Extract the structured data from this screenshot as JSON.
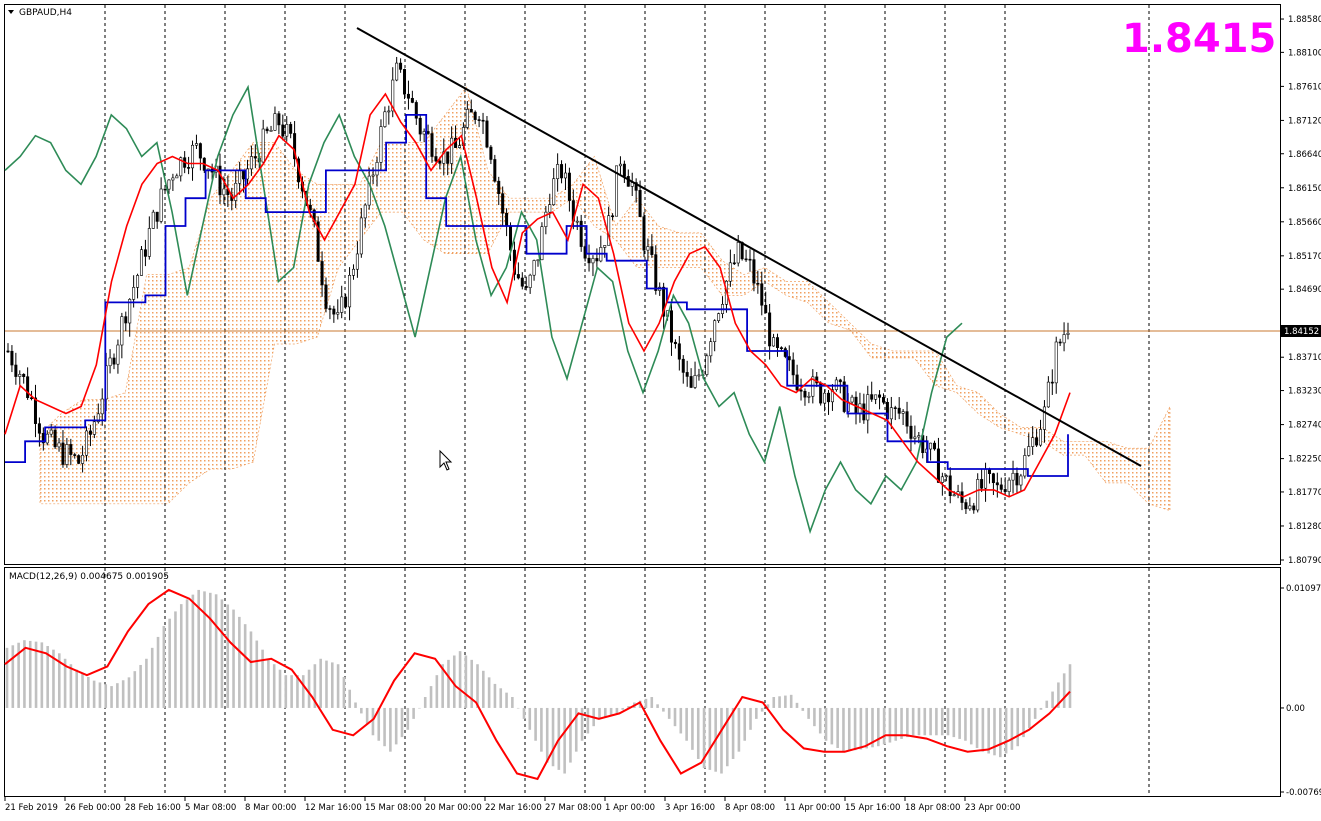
{
  "symbol_label": "GBPAUD,H4",
  "price_display": "1.8415",
  "current_price_tag": "1.84152",
  "indicator_label": "MACD(12,26,9) 0.004675 0.001905",
  "colors": {
    "ichimoku_cloud": "#f0a060",
    "kumo_grey": "#b8b8c8",
    "tenkan": "#ff0000",
    "kijun": "#0000cc",
    "chikou": "#2e8b57",
    "macd_hist": "#c0c0c0",
    "macd_signal": "#ff0000",
    "price_big": "#ff00ff",
    "current_line": "#c87830"
  },
  "chart_data": [
    {
      "type": "line",
      "title": "GBPAUD,H4",
      "y_ticks": [
        "1.88580",
        "1.88100",
        "1.87610",
        "1.87120",
        "1.86640",
        "1.86150",
        "1.85660",
        "1.85170",
        "1.84690",
        "1.84152",
        "1.83710",
        "1.83230",
        "1.82740",
        "1.82250",
        "1.81770",
        "1.81280",
        "1.80790"
      ],
      "ylim": [
        1.8079,
        1.8871
      ],
      "x_ticks": [
        "21 Feb 2019",
        "26 Feb 00:00",
        "28 Feb 16:00",
        "5 Mar 08:00",
        "8 Mar 00:00",
        "12 Mar 16:00",
        "15 Mar 08:00",
        "20 Mar 00:00",
        "22 Mar 16:00",
        "27 Mar 08:00",
        "1 Apr 00:00",
        "3 Apr 16:00",
        "8 Apr 08:00",
        "11 Apr 00:00",
        "15 Apr 16:00",
        "18 Apr 08:00",
        "23 Apr 00:00"
      ],
      "current_price": 1.84152,
      "trendline": {
        "from": [
          0.355,
          1.886
        ],
        "to": [
          1.14,
          1.822
        ]
      },
      "series": [
        {
          "name": "",
          "role": "price",
          "values": [
            1.838,
            1.835,
            1.831,
            1.826,
            1.824,
            1.823,
            1.822,
            1.826,
            1.832,
            1.838,
            1.844,
            1.849,
            1.855,
            1.86,
            1.864,
            1.866,
            1.867,
            1.865,
            1.862,
            1.86,
            1.863,
            1.866,
            1.869,
            1.871,
            1.868,
            1.862,
            1.855,
            1.846,
            1.842,
            1.848,
            1.856,
            1.864,
            1.872,
            1.878,
            1.875,
            1.87,
            1.868,
            1.866,
            1.867,
            1.871,
            1.873,
            1.867,
            1.858,
            1.85,
            1.846,
            1.852,
            1.861,
            1.864,
            1.858,
            1.853,
            1.852,
            1.856,
            1.866,
            1.862,
            1.854,
            1.848,
            1.842,
            1.836,
            1.832,
            1.836,
            1.843,
            1.848,
            1.852,
            1.85,
            1.845,
            1.838,
            1.836,
            1.834,
            1.833,
            1.832,
            1.833,
            1.831,
            1.829,
            1.83,
            1.831,
            1.829,
            1.829,
            1.826,
            1.824,
            1.821,
            1.818,
            1.816,
            1.817,
            1.819,
            1.818,
            1.82,
            1.821,
            1.825,
            1.829,
            1.838,
            1.842
          ]
        },
        {
          "name": "",
          "role": "tenkan",
          "values": [
            1.826,
            1.833,
            1.831,
            1.83,
            1.829,
            1.83,
            1.836,
            1.848,
            1.856,
            1.862,
            1.865,
            1.866,
            1.865,
            1.865,
            1.864,
            1.86,
            1.862,
            1.865,
            1.869,
            1.867,
            1.858,
            1.854,
            1.858,
            1.862,
            1.872,
            1.875,
            1.871,
            1.868,
            1.864,
            1.867,
            1.869,
            1.86,
            1.85,
            1.845,
            1.855,
            1.857,
            1.858,
            1.854,
            1.862,
            1.86,
            1.852,
            1.842,
            1.838,
            1.842,
            1.848,
            1.852,
            1.853,
            1.85,
            1.842,
            1.838,
            1.836,
            1.833,
            1.832,
            1.834,
            1.833,
            1.831,
            1.83,
            1.829,
            1.828,
            1.825,
            1.822,
            1.82,
            1.818,
            1.817,
            1.818,
            1.818,
            1.817,
            1.818,
            1.822,
            1.826,
            1.832
          ]
        },
        {
          "name": "",
          "role": "kijun",
          "values": [
            1.822,
            1.825,
            1.827,
            1.827,
            1.828,
            1.845,
            1.845,
            1.846,
            1.856,
            1.86,
            1.864,
            1.864,
            1.86,
            1.858,
            1.858,
            1.858,
            1.864,
            1.864,
            1.864,
            1.868,
            1.872,
            1.86,
            1.856,
            1.856,
            1.856,
            1.856,
            1.852,
            1.852,
            1.856,
            1.852,
            1.851,
            1.851,
            1.847,
            1.845,
            1.844,
            1.844,
            1.844,
            1.838,
            1.838,
            1.833,
            1.833,
            1.833,
            1.829,
            1.829,
            1.825,
            1.825,
            1.822,
            1.821,
            1.821,
            1.821,
            1.821,
            1.82,
            1.82,
            1.826
          ]
        },
        {
          "name": "",
          "role": "chikou",
          "values": [
            1.864,
            1.866,
            1.869,
            1.868,
            1.864,
            1.862,
            1.866,
            1.872,
            1.87,
            1.866,
            1.868,
            1.858,
            1.846,
            1.856,
            1.866,
            1.872,
            1.876,
            1.862,
            1.848,
            1.85,
            1.862,
            1.868,
            1.872,
            1.866,
            1.862,
            1.856,
            1.848,
            1.84,
            1.85,
            1.86,
            1.866,
            1.854,
            1.846,
            1.85,
            1.858,
            1.854,
            1.84,
            1.834,
            1.842,
            1.85,
            1.848,
            1.838,
            1.832,
            1.838,
            1.846,
            1.842,
            1.834,
            1.83,
            1.832,
            1.826,
            1.822,
            1.83,
            1.82,
            1.812,
            1.818,
            1.822,
            1.818,
            1.816,
            1.82,
            1.818,
            1.822,
            1.832,
            1.84,
            1.842
          ]
        }
      ]
    },
    {
      "type": "bar",
      "title": "MACD(12,26,9) 0.004675 0.001905",
      "y_ticks": [
        "0.010975",
        "0.00",
        "-0.00769"
      ],
      "ylim": [
        -0.00769,
        0.010975
      ],
      "series": [
        {
          "name": "",
          "role": "histogram",
          "values": [
            0.0055,
            0.0062,
            0.006,
            0.005,
            0.0035,
            0.0025,
            0.002,
            0.0028,
            0.0045,
            0.0075,
            0.0095,
            0.0108,
            0.0104,
            0.009,
            0.007,
            0.0045,
            0.003,
            0.003,
            0.0045,
            0.004,
            0.0005,
            -0.0025,
            -0.004,
            -0.002,
            0.001,
            0.004,
            0.0052,
            0.004,
            0.0022,
            0.001,
            -0.002,
            -0.005,
            -0.006,
            -0.003,
            -0.001,
            -0.0005,
            0.0005,
            0.001,
            -0.001,
            -0.003,
            -0.0055,
            -0.006,
            -0.004,
            -0.001,
            0.001,
            0.0012,
            -0.001,
            -0.003,
            -0.004,
            -0.0038,
            -0.0035,
            -0.003,
            -0.0025,
            -0.0025,
            -0.0025,
            -0.003,
            -0.004,
            -0.0045,
            -0.0035,
            -0.001,
            0.0015,
            0.004
          ]
        },
        {
          "name": "",
          "role": "signal",
          "values": [
            0.004,
            0.0055,
            0.005,
            0.0038,
            0.003,
            0.0038,
            0.007,
            0.0095,
            0.0108,
            0.01,
            0.0082,
            0.006,
            0.0042,
            0.0045,
            0.0035,
            0.001,
            -0.002,
            -0.0025,
            -0.001,
            0.0025,
            0.005,
            0.0045,
            0.002,
            0.0005,
            -0.003,
            -0.006,
            -0.0065,
            -0.003,
            -0.0005,
            -0.001,
            -0.0005,
            0.0005,
            -0.003,
            -0.006,
            -0.005,
            -0.002,
            0.001,
            0.0005,
            -0.002,
            -0.0037,
            -0.004,
            -0.004,
            -0.0035,
            -0.0025,
            -0.0025,
            -0.0028,
            -0.0035,
            -0.004,
            -0.0038,
            -0.003,
            -0.002,
            -0.0005,
            0.0015
          ]
        }
      ]
    }
  ]
}
